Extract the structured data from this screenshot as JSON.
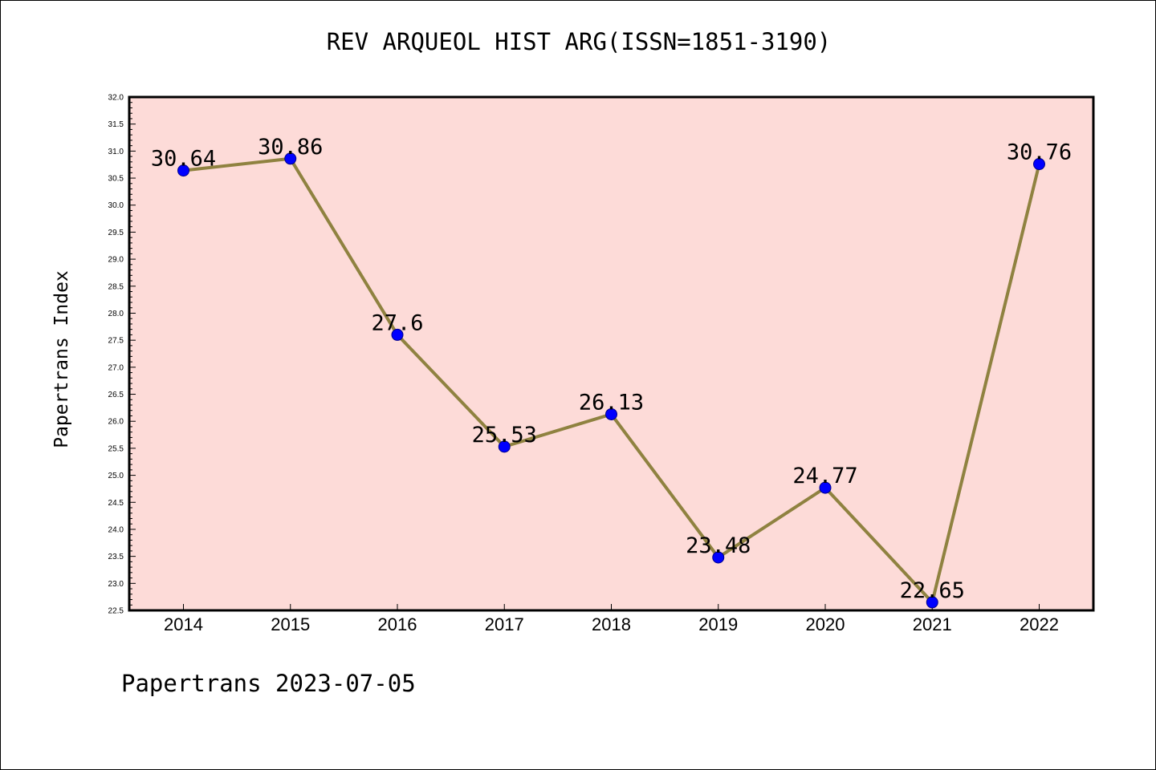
{
  "title": "REV ARQUEOL HIST ARG(ISSN=1851-3190)",
  "footer": "Papertrans 2023-07-05",
  "chart_data": {
    "type": "line",
    "title": "REV ARQUEOL HIST ARG(ISSN=1851-3190)",
    "xlabel": "",
    "ylabel": "Papertrans Index",
    "categories": [
      "2014",
      "2015",
      "2016",
      "2017",
      "2018",
      "2019",
      "2020",
      "2021",
      "2022"
    ],
    "series": [
      {
        "values": [
          30.64,
          30.86,
          27.6,
          25.53,
          26.13,
          23.48,
          24.77,
          22.65,
          30.76
        ],
        "labels": [
          "30.64",
          "30.86",
          "27.6",
          "25.53",
          "26.13",
          "23.48",
          "24.77",
          "22.65",
          "30.76"
        ]
      }
    ],
    "ylim": [
      22.5,
      32.0
    ],
    "yticks": [
      "22.5",
      "23.0",
      "23.5",
      "24.0",
      "24.5",
      "25.0",
      "25.5",
      "26.0",
      "26.5",
      "27.0",
      "27.5",
      "28.0",
      "28.5",
      "29.0",
      "29.5",
      "30.0",
      "30.5",
      "31.0",
      "31.5",
      "32.0"
    ],
    "grid": false,
    "legend": "none",
    "colors": {
      "plot_background": "#fddbd8",
      "line": "#8f8240",
      "marker": "#0000ff"
    }
  }
}
